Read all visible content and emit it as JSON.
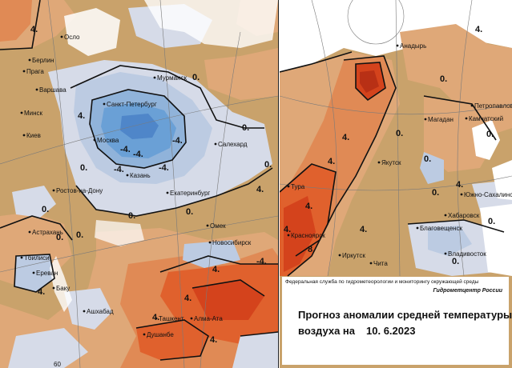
{
  "colors": {
    "water": "#ffffff",
    "tan": "#c9a26b",
    "orange_light": "#dfa878",
    "orange": "#e08a55",
    "orange_dark": "#e0612d",
    "red": "#d4431c",
    "blue_pale": "#d6dbe8",
    "blue_light": "#bccbe2",
    "blue": "#90b3da",
    "blue_mid": "#6aa0d6",
    "blue_dark": "#4f86c9",
    "contour": "#111111",
    "grid": "#7a7a7a"
  },
  "left_map": {
    "cities": [
      "Осло",
      "Берлин",
      "Прага",
      "Варшава",
      "Мурманск",
      "Санкт-Петербург",
      "Минск",
      "Киев",
      "Москва",
      "Салехард",
      "Казань",
      "Ростов-на-Дону",
      "Екатеринбург",
      "Астрахань",
      "Омек",
      "Тбилиси",
      "Новосибирск",
      "Ереван",
      "Баку",
      "Ашхабад",
      "Ташкент",
      "Алма-Ата",
      "Душанбе"
    ],
    "isotherm_labels": [
      "4.",
      "0.",
      "4.",
      "-4.",
      "0.",
      "-4.",
      "-4.",
      "0.",
      "-4.",
      "0.",
      "0.",
      "0.",
      "0.",
      "0.",
      "4.",
      "4.",
      "4.",
      "4.",
      "-4.",
      "4.",
      "4.",
      "0.",
      "-4."
    ],
    "graticule_labels": [
      "60"
    ]
  },
  "right_map": {
    "cities": [
      "Анадырь",
      "Петропавловск",
      "Магадан",
      "Камчатский",
      "Якутск",
      "Тура",
      "Южно-Сахалинск",
      "Хабаровск",
      "Красноярск",
      "Благовещенск",
      "Чита",
      "Иркутск",
      "Владивосток"
    ],
    "isotherm_labels": [
      "4.",
      "0.",
      "0.",
      "4.",
      "4.",
      "4.",
      "4.",
      "4.",
      "0.",
      "0.",
      "0.",
      "0.",
      "8.",
      "4.",
      "0."
    ]
  },
  "info": {
    "agency": "Федеральная служба по гидрометеорологии и мониторингу окружающей среды",
    "center": "Гидрометцентр России",
    "title_line1": "Прогноз аномалии средней температуры",
    "title_line2": "воздуха на",
    "date": "10. 6.2023"
  }
}
